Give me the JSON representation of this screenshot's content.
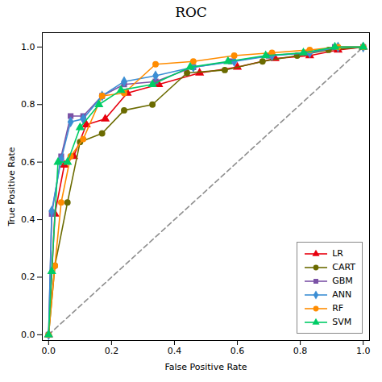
{
  "chart_data": {
    "type": "line",
    "title": "ROC",
    "xlabel": "False Positive Rate",
    "ylabel": "True Positive Rate",
    "xlim": [
      -0.02,
      1.02
    ],
    "ylim": [
      -0.02,
      1.05
    ],
    "xticks": [
      {
        "value": 0.0,
        "label": "0.0"
      },
      0.2,
      0.4,
      0.6,
      0.8,
      {
        "value": 1.0,
        "label": "1.0"
      }
    ],
    "yticks": [
      {
        "value": 0.0,
        "label": "0.0"
      },
      0.2,
      0.4,
      0.6,
      0.8,
      {
        "value": 1.0,
        "label": "1.0"
      }
    ],
    "grid": false,
    "legend": "lower right",
    "series": [
      {
        "name": "LR",
        "color": "#E8000E",
        "marker": "triangle",
        "x": [
          0.0,
          0.02,
          0.05,
          0.08,
          0.12,
          0.18,
          0.25,
          0.35,
          0.48,
          0.6,
          0.72,
          0.83,
          0.92,
          1.0
        ],
        "values": [
          0.0,
          0.42,
          0.59,
          0.62,
          0.73,
          0.75,
          0.84,
          0.87,
          0.91,
          0.93,
          0.96,
          0.97,
          0.99,
          1.0
        ]
      },
      {
        "name": "CART",
        "color": "#6B6B00",
        "marker": "circle",
        "x": [
          0.0,
          0.02,
          0.06,
          0.1,
          0.17,
          0.24,
          0.33,
          0.44,
          0.56,
          0.68,
          0.79,
          0.89,
          1.0
        ],
        "values": [
          0.0,
          0.24,
          0.46,
          0.67,
          0.7,
          0.78,
          0.8,
          0.91,
          0.92,
          0.95,
          0.97,
          0.99,
          1.0
        ]
      },
      {
        "name": "GBM",
        "color": "#7B52A6",
        "marker": "square",
        "x": [
          0.0,
          0.01,
          0.04,
          0.07,
          0.11,
          0.17,
          0.24,
          0.34,
          0.46,
          0.58,
          0.7,
          0.82,
          0.91,
          1.0
        ],
        "values": [
          0.0,
          0.42,
          0.62,
          0.76,
          0.76,
          0.83,
          0.87,
          0.88,
          0.93,
          0.95,
          0.97,
          0.98,
          1.0,
          1.0
        ]
      },
      {
        "name": "ANN",
        "color": "#3C8ED4",
        "marker": "diamond",
        "x": [
          0.0,
          0.01,
          0.04,
          0.07,
          0.11,
          0.17,
          0.24,
          0.34,
          0.46,
          0.59,
          0.71,
          0.83,
          0.92,
          1.0
        ],
        "values": [
          0.0,
          0.43,
          0.61,
          0.74,
          0.75,
          0.83,
          0.88,
          0.9,
          0.93,
          0.95,
          0.97,
          0.98,
          1.0,
          1.0
        ]
      },
      {
        "name": "RF",
        "color": "#FF8C00",
        "marker": "circle",
        "x": [
          0.0,
          0.02,
          0.04,
          0.07,
          0.11,
          0.17,
          0.24,
          0.34,
          0.46,
          0.59,
          0.71,
          0.83,
          0.92,
          1.0
        ],
        "values": [
          0.0,
          0.24,
          0.46,
          0.62,
          0.68,
          0.83,
          0.84,
          0.94,
          0.95,
          0.97,
          0.98,
          0.99,
          1.0,
          1.0
        ]
      },
      {
        "name": "SVM",
        "color": "#00CC66",
        "marker": "triangle",
        "x": [
          0.0,
          0.01,
          0.03,
          0.06,
          0.1,
          0.16,
          0.23,
          0.33,
          0.45,
          0.57,
          0.69,
          0.81,
          0.91,
          1.0
        ],
        "values": [
          0.0,
          0.22,
          0.6,
          0.6,
          0.72,
          0.8,
          0.85,
          0.87,
          0.93,
          0.95,
          0.97,
          0.98,
          1.0,
          1.0
        ]
      }
    ],
    "reference_line": {
      "x": [
        0,
        1
      ],
      "values": [
        0,
        1
      ],
      "color": "#909090",
      "line_style": "dashed"
    }
  }
}
